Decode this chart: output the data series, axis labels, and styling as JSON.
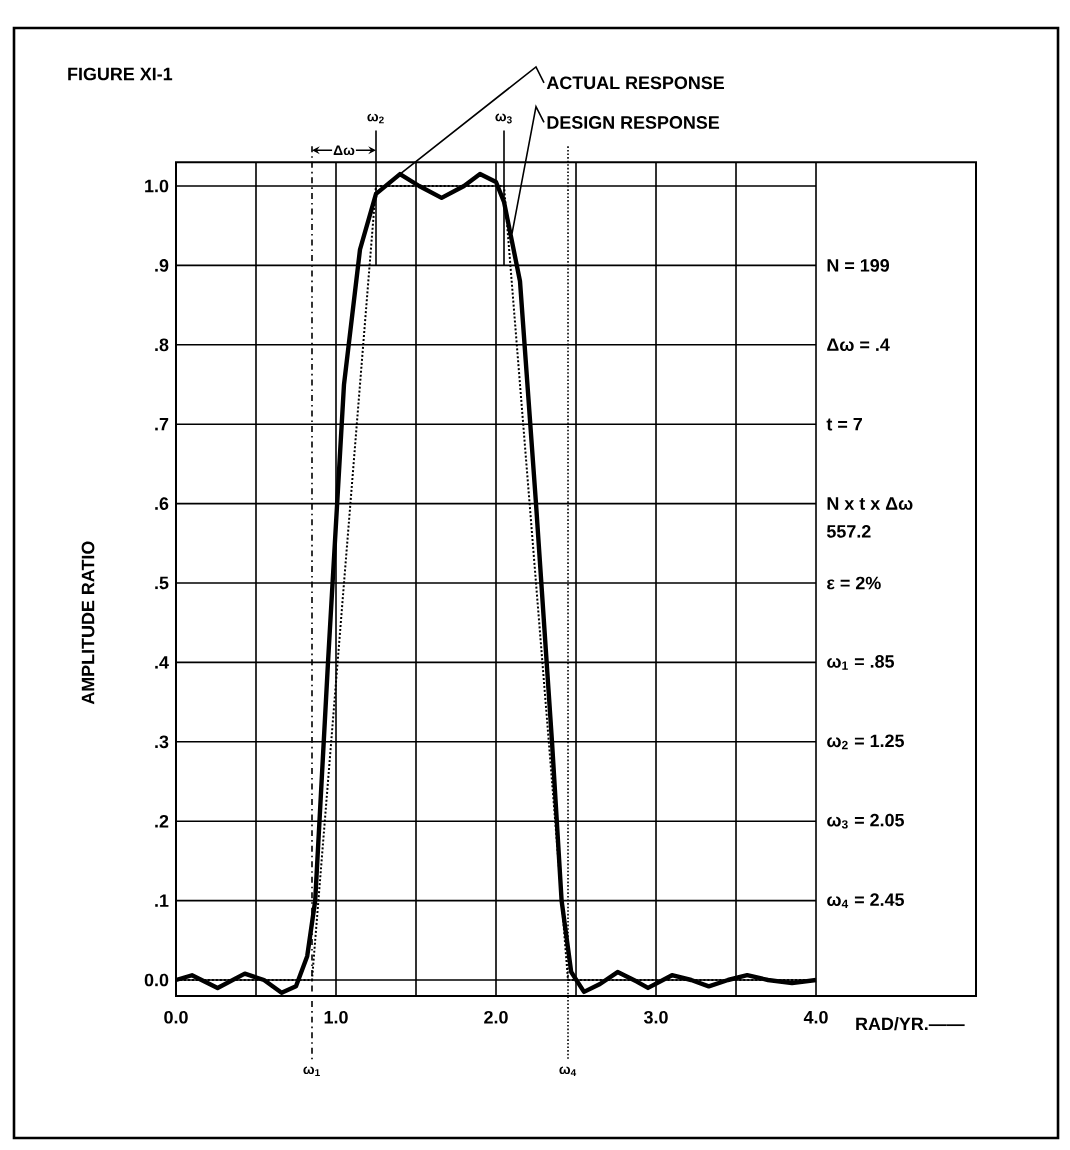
{
  "chart_data": {
    "type": "line",
    "title": "FIGURE XI-1",
    "ylabel": "AMPLITUDE RATIO",
    "xlabel": "RAD/YR.——",
    "xlim": [
      0,
      5
    ],
    "ylim": [
      -0.02,
      1.03
    ],
    "xticks": [
      {
        "value": 0,
        "label": "0.0"
      },
      {
        "value": 0.5,
        "label": null
      },
      {
        "value": 1,
        "label": "1.0"
      },
      {
        "value": 1.5,
        "label": null
      },
      {
        "value": 2,
        "label": "2.0"
      },
      {
        "value": 2.5,
        "label": null
      },
      {
        "value": 3,
        "label": "3.0"
      },
      {
        "value": 3.5,
        "label": null
      },
      {
        "value": 4,
        "label": "4.0"
      }
    ],
    "yticks": [
      {
        "value": 0,
        "label": "0.0"
      },
      {
        "value": 0.1,
        "label": ".1"
      },
      {
        "value": 0.2,
        "label": ".2"
      },
      {
        "value": 0.3,
        "label": ".3"
      },
      {
        "value": 0.4,
        "label": ".4"
      },
      {
        "value": 0.5,
        "label": ".5"
      },
      {
        "value": 0.6,
        "label": ".6"
      },
      {
        "value": 0.7,
        "label": ".7"
      },
      {
        "value": 0.8,
        "label": ".8"
      },
      {
        "value": 0.9,
        "label": ".9"
      },
      {
        "value": 1,
        "label": "1.0"
      }
    ],
    "grid": true,
    "series": [
      {
        "color": "#000000",
        "line_style": "solid",
        "x": [
          0,
          0.1,
          0.26,
          0.43,
          0.55,
          0.66,
          0.75,
          0.82,
          0.87,
          0.95,
          1.05,
          1.15,
          1.25,
          1.4,
          1.52,
          1.66,
          1.8,
          1.9,
          2.0,
          2.05,
          2.15,
          2.25,
          2.35,
          2.41,
          2.47,
          2.55,
          2.65,
          2.76,
          2.88,
          2.95,
          3.1,
          3.22,
          3.33,
          3.45,
          3.57,
          3.7,
          3.85,
          4.0
        ],
        "values": [
          0,
          0.006,
          -0.01,
          0.008,
          0,
          -0.016,
          -0.008,
          0.03,
          0.1,
          0.4,
          0.75,
          0.92,
          0.99,
          1.015,
          1.0,
          0.985,
          1.0,
          1.015,
          1.005,
          0.98,
          0.88,
          0.6,
          0.3,
          0.1,
          0.01,
          -0.015,
          -0.005,
          0.01,
          -0.002,
          -0.01,
          0.006,
          0,
          -0.008,
          0,
          0.006,
          0,
          -0.004,
          0
        ]
      },
      {
        "color": "#000000",
        "line_style": "dotted",
        "x": [
          0,
          0.85,
          1.25,
          2.05,
          2.45,
          4.0
        ],
        "values": [
          0,
          0,
          1,
          1,
          0,
          0
        ]
      }
    ],
    "ref_lines": [
      {
        "axis": "x",
        "value": 0.85,
        "label": "ω$_{1}$",
        "line_style": "dashed"
      },
      {
        "axis": "x",
        "value": 1.25,
        "label": "ω$_{2}$",
        "line_style": "solid"
      },
      {
        "axis": "x",
        "value": 2.05,
        "label": "ω$_{3}$",
        "line_style": "solid"
      },
      {
        "axis": "x",
        "value": 2.45,
        "label": "ω$_{4}$",
        "line_style": "dotted"
      }
    ],
    "annotations": [
      {
        "text": "ACTUAL RESPONSE",
        "x": 1.4,
        "y": 1.015
      },
      {
        "text": "DESIGN RESPONSE",
        "x": 2.1,
        "y": 0.94
      },
      "Δω",
      "N = 199",
      "Δω = .4",
      "t = 7",
      "N x t x Δω",
      "557.2",
      "ε = 2%",
      "ω$_{1}$ = .85",
      "ω$_{2}$ = 1.25",
      "ω$_{3}$ = 2.05",
      "ω$_{4}$ = 2.45"
    ]
  }
}
